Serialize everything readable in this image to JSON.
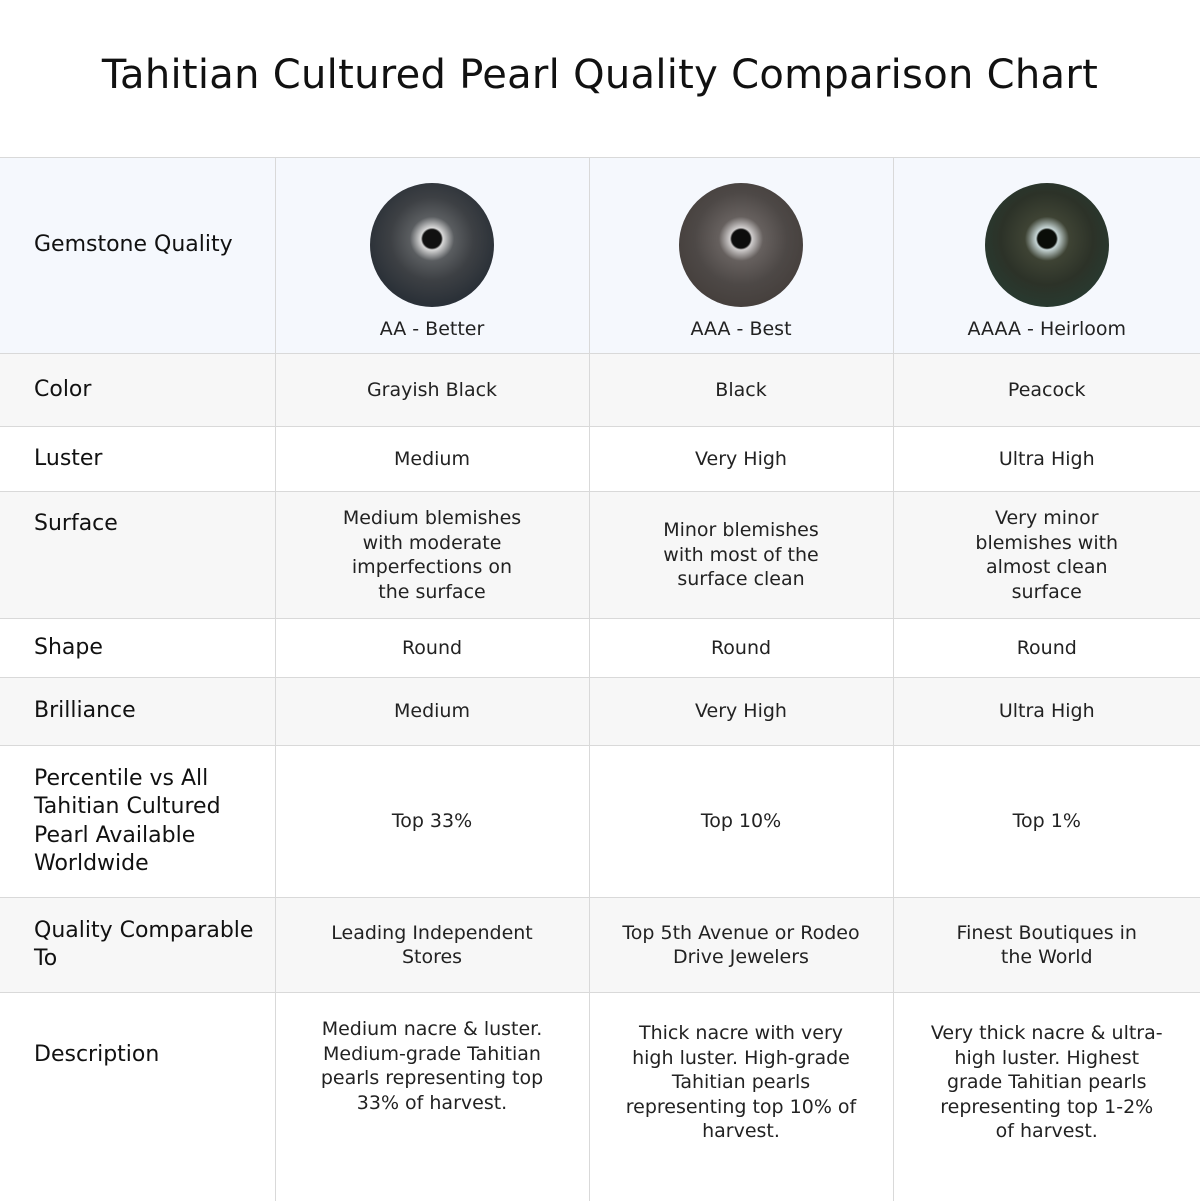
{
  "title": "Tahitian Cultured Pearl Quality Comparison Chart",
  "header": {
    "label": "Gemstone Quality",
    "grades": [
      {
        "label": "AA - Better",
        "pearl_icon": "grayish-black-pearl"
      },
      {
        "label": "AAA - Best",
        "pearl_icon": "black-pearl"
      },
      {
        "label": "AAAA - Heirloom",
        "pearl_icon": "peacock-pearl"
      }
    ]
  },
  "rows": [
    {
      "label": "Color",
      "values": [
        "Grayish Black",
        "Black",
        "Peacock"
      ]
    },
    {
      "label": "Luster",
      "values": [
        "Medium",
        "Very High",
        "Ultra High"
      ]
    },
    {
      "label": "Surface",
      "values": [
        "Medium blemishes with moderate imperfections on the surface",
        "Minor blemishes with most of the surface clean",
        "Very minor blemishes with almost clean surface"
      ]
    },
    {
      "label": "Shape",
      "values": [
        "Round",
        "Round",
        "Round"
      ]
    },
    {
      "label": "Brilliance",
      "values": [
        "Medium",
        "Very High",
        "Ultra High"
      ]
    },
    {
      "label": "Percentile vs All Tahitian Cultured Pearl Available Worldwide",
      "values": [
        "Top 33%",
        "Top 10%",
        "Top 1%"
      ]
    },
    {
      "label": "Quality Comparable To",
      "values": [
        "Leading Independent Stores",
        "Top 5th Avenue or Rodeo Drive Jewelers",
        "Finest Boutiques in the World"
      ]
    },
    {
      "label": "Description",
      "values": [
        "Medium nacre & luster. Medium-grade Tahitian pearls representing top 33% of harvest.",
        "Thick nacre with very high luster. High-grade Tahitian pearls representing top 10% of harvest.",
        "Very thick nacre & ultra-high luster. Highest grade Tahitian pearls representing top 1-2% of harvest."
      ]
    }
  ]
}
